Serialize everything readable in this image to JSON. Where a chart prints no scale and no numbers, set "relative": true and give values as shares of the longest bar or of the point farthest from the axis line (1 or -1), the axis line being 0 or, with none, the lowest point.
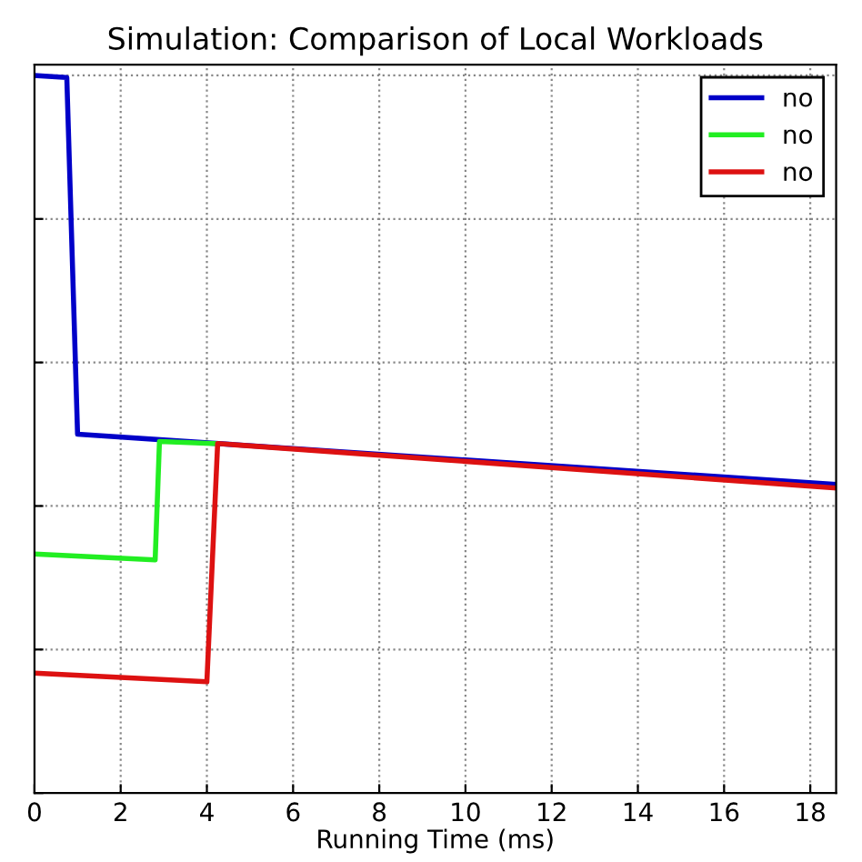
{
  "chart_data": {
    "type": "line",
    "title": "Simulation: Comparison of Local Workloads",
    "xlabel": "Running Time (ms)",
    "relative": true,
    "xlim": [
      0,
      18.6
    ],
    "xticks": [
      0,
      2,
      4,
      6,
      8,
      10,
      12,
      14,
      16,
      18
    ],
    "tick_labels": "x",
    "grid": true,
    "legend": "top right",
    "line_style": "solid",
    "marker": "none",
    "series": [
      {
        "name": "no",
        "color": "#0000c8",
        "x": [
          0,
          0.75,
          1.0,
          18.6
        ],
        "values": [
          1,
          0.997,
          0.5,
          0.43
        ]
      },
      {
        "name": "no",
        "color": "#22ee22",
        "x": [
          0,
          2.8,
          2.9,
          4.2
        ],
        "values": [
          0.333,
          0.325,
          0.49,
          0.487
        ]
      },
      {
        "name": "no",
        "color": "#dd1111",
        "x": [
          0,
          4.0,
          4.25,
          18.6
        ],
        "values": [
          0.167,
          0.155,
          0.487,
          0.425
        ]
      }
    ]
  }
}
